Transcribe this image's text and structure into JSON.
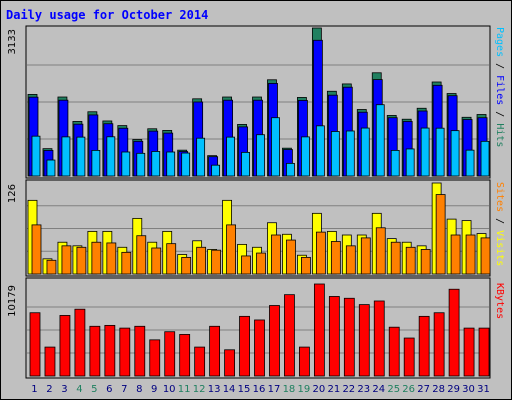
{
  "title": "Daily usage for October 2014",
  "colors": {
    "hits": "#208060",
    "files": "#0000ff",
    "pages": "#00c0ff",
    "visits": "#ffff00",
    "sites": "#ff8000",
    "kbytes": "#ff0000",
    "title": "#0000ff",
    "weekend_day": "#208060",
    "weekday": "#000080"
  },
  "chart_data": [
    {
      "type": "bar",
      "title": "",
      "ylabel_max": "3133",
      "right_labels": [
        "Pages",
        "Files",
        "Hits"
      ],
      "categories": [
        "1",
        "2",
        "3",
        "4",
        "5",
        "6",
        "7",
        "8",
        "9",
        "10",
        "11",
        "12",
        "13",
        "14",
        "15",
        "16",
        "17",
        "18",
        "19",
        "20",
        "21",
        "22",
        "23",
        "24",
        "25",
        "26",
        "27",
        "28",
        "29",
        "30",
        "31"
      ],
      "ylim": [
        0,
        3133
      ],
      "series": [
        {
          "name": "Hits",
          "values": [
            1727,
            579,
            1672,
            1155,
            1360,
            1165,
            1067,
            772,
            1000,
            965,
            547,
            1634,
            431,
            1672,
            1092,
            1672,
            2037,
            589,
            1663,
            3133,
            1794,
            1949,
            1408,
            2185,
            1282,
            1202,
            1434,
            1990,
            1746,
            1243,
            1302
          ]
        },
        {
          "name": "Files",
          "values": [
            1669,
            541,
            1605,
            1097,
            1293,
            1107,
            1011,
            734,
            950,
            908,
            518,
            1567,
            409,
            1605,
            1040,
            1605,
            1960,
            560,
            1600,
            2873,
            1711,
            1880,
            1350,
            2041,
            1234,
            1155,
            1376,
            1920,
            1700,
            1196,
            1234
          ]
        },
        {
          "name": "Pages",
          "values": [
            843,
            338,
            828,
            823,
            542,
            830,
            508,
            480,
            519,
            508,
            486,
            800,
            229,
            823,
            500,
            874,
            1234,
            267,
            828,
            1062,
            942,
            953,
            1015,
            1509,
            542,
            573,
            1015,
            1012,
            960,
            547,
            734
          ]
        }
      ]
    },
    {
      "type": "bar",
      "title": "",
      "ylabel_max": "126",
      "right_labels": [
        "Sites",
        "Visits"
      ],
      "categories": [
        "1",
        "2",
        "3",
        "4",
        "5",
        "6",
        "7",
        "8",
        "9",
        "10",
        "11",
        "12",
        "13",
        "14",
        "15",
        "16",
        "17",
        "18",
        "19",
        "20",
        "21",
        "22",
        "23",
        "24",
        "25",
        "26",
        "27",
        "28",
        "29",
        "30",
        "31"
      ],
      "ylim": [
        0,
        126
      ],
      "series": [
        {
          "name": "Visits",
          "values": [
            102,
            21,
            44,
            39,
            59,
            59,
            37,
            77,
            44,
            59,
            27,
            46,
            34,
            102,
            41,
            37,
            71,
            55,
            26,
            84,
            59,
            54,
            54,
            84,
            49,
            44,
            39,
            126,
            76,
            74,
            56
          ]
        },
        {
          "name": "Sites",
          "values": [
            68,
            19,
            39,
            37,
            44,
            43,
            30,
            53,
            36,
            42,
            23,
            37,
            33,
            68,
            25,
            29,
            54,
            47,
            23,
            58,
            45,
            39,
            50,
            64,
            44,
            37,
            34,
            110,
            54,
            54,
            50
          ]
        }
      ]
    },
    {
      "type": "bar",
      "title": "",
      "ylabel_max": "10179",
      "right_labels": [
        "KBytes"
      ],
      "categories": [
        "1",
        "2",
        "3",
        "4",
        "5",
        "6",
        "7",
        "8",
        "9",
        "10",
        "11",
        "12",
        "13",
        "14",
        "15",
        "16",
        "17",
        "18",
        "19",
        "20",
        "21",
        "22",
        "23",
        "24",
        "25",
        "26",
        "27",
        "28",
        "29",
        "30",
        "31"
      ],
      "ylim": [
        0,
        10179
      ],
      "series": [
        {
          "name": "KBytes",
          "values": [
            7000,
            3200,
            6700,
            7390,
            5500,
            5600,
            5300,
            5500,
            4000,
            4900,
            4600,
            3200,
            5500,
            2900,
            6600,
            6200,
            7800,
            9000,
            3200,
            10179,
            8800,
            8600,
            7900,
            8300,
            5400,
            4200,
            6600,
            7000,
            9600,
            5300,
            5300
          ]
        }
      ]
    }
  ]
}
